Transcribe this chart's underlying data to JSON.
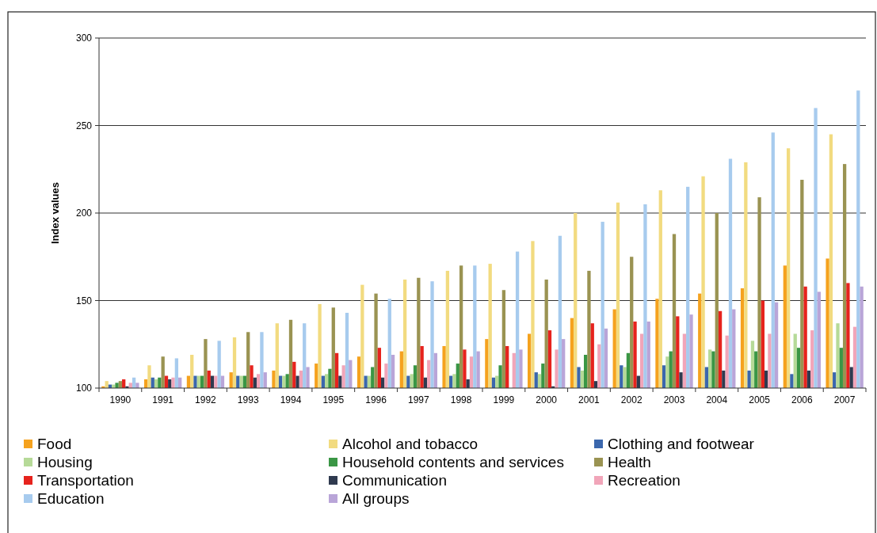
{
  "chart_data": {
    "type": "bar",
    "ylabel": "Index values",
    "categories": [
      "1990",
      "1991",
      "1992",
      "1993",
      "1994",
      "1995",
      "1996",
      "1997",
      "1998",
      "1999",
      "2000",
      "2001",
      "2002",
      "2003",
      "2004",
      "2005",
      "2006",
      "2007"
    ],
    "series": [
      {
        "name": "Food",
        "color": "#f5a21e",
        "values": [
          101,
          105,
          107,
          109,
          110,
          114,
          118,
          121,
          124,
          128,
          131,
          140,
          145,
          151,
          154,
          157,
          170,
          174
        ]
      },
      {
        "name": "Alcohol and tobacco",
        "color": "#f2db80",
        "values": [
          104,
          113,
          119,
          129,
          137,
          148,
          159,
          162,
          167,
          171,
          184,
          200,
          206,
          213,
          221,
          229,
          237,
          245
        ]
      },
      {
        "name": "Clothing and footwear",
        "color": "#3b67ad",
        "values": [
          102,
          106,
          107,
          107,
          107,
          107,
          107,
          107,
          107,
          106,
          109,
          112,
          113,
          113,
          112,
          110,
          108,
          109
        ]
      },
      {
        "name": "Housing",
        "color": "#b6da98",
        "values": [
          102,
          105,
          107,
          107,
          107,
          108,
          107,
          108,
          108,
          107,
          108,
          110,
          112,
          118,
          122,
          127,
          131,
          137
        ]
      },
      {
        "name": "Household contents and services",
        "color": "#3a9645",
        "values": [
          103,
          106,
          107,
          107,
          108,
          111,
          112,
          113,
          114,
          113,
          114,
          119,
          120,
          121,
          121,
          121,
          123,
          123
        ]
      },
      {
        "name": "Health",
        "color": "#9a9352",
        "values": [
          104,
          118,
          128,
          132,
          139,
          146,
          154,
          163,
          170,
          156,
          162,
          167,
          175,
          188,
          200,
          209,
          219,
          228
        ]
      },
      {
        "name": "Transportation",
        "color": "#e6231d",
        "values": [
          105,
          107,
          110,
          113,
          115,
          120,
          123,
          124,
          122,
          124,
          133,
          137,
          138,
          141,
          144,
          150,
          158,
          160
        ]
      },
      {
        "name": "Communication",
        "color": "#2f3a4f",
        "values": [
          101,
          105,
          107,
          106,
          107,
          107,
          106,
          106,
          105,
          100,
          101,
          104,
          107,
          109,
          110,
          110,
          110,
          112
        ]
      },
      {
        "name": "Recreation",
        "color": "#f1a5b9",
        "values": [
          103,
          106,
          107,
          108,
          110,
          113,
          114,
          116,
          118,
          120,
          122,
          125,
          131,
          131,
          130,
          131,
          133,
          135
        ]
      },
      {
        "name": "Education",
        "color": "#a7cbee",
        "values": [
          106,
          117,
          127,
          132,
          137,
          143,
          151,
          161,
          170,
          178,
          187,
          195,
          205,
          215,
          231,
          246,
          260,
          270
        ]
      },
      {
        "name": "All groups",
        "color": "#b9a5d8",
        "values": [
          103,
          106,
          107,
          109,
          112,
          116,
          119,
          120,
          121,
          122,
          128,
          134,
          138,
          142,
          145,
          149,
          155,
          158
        ]
      }
    ],
    "ylim": [
      100,
      300
    ],
    "yticks": [
      100,
      150,
      200,
      250,
      300
    ],
    "grid": "y",
    "legend": "bottom"
  }
}
